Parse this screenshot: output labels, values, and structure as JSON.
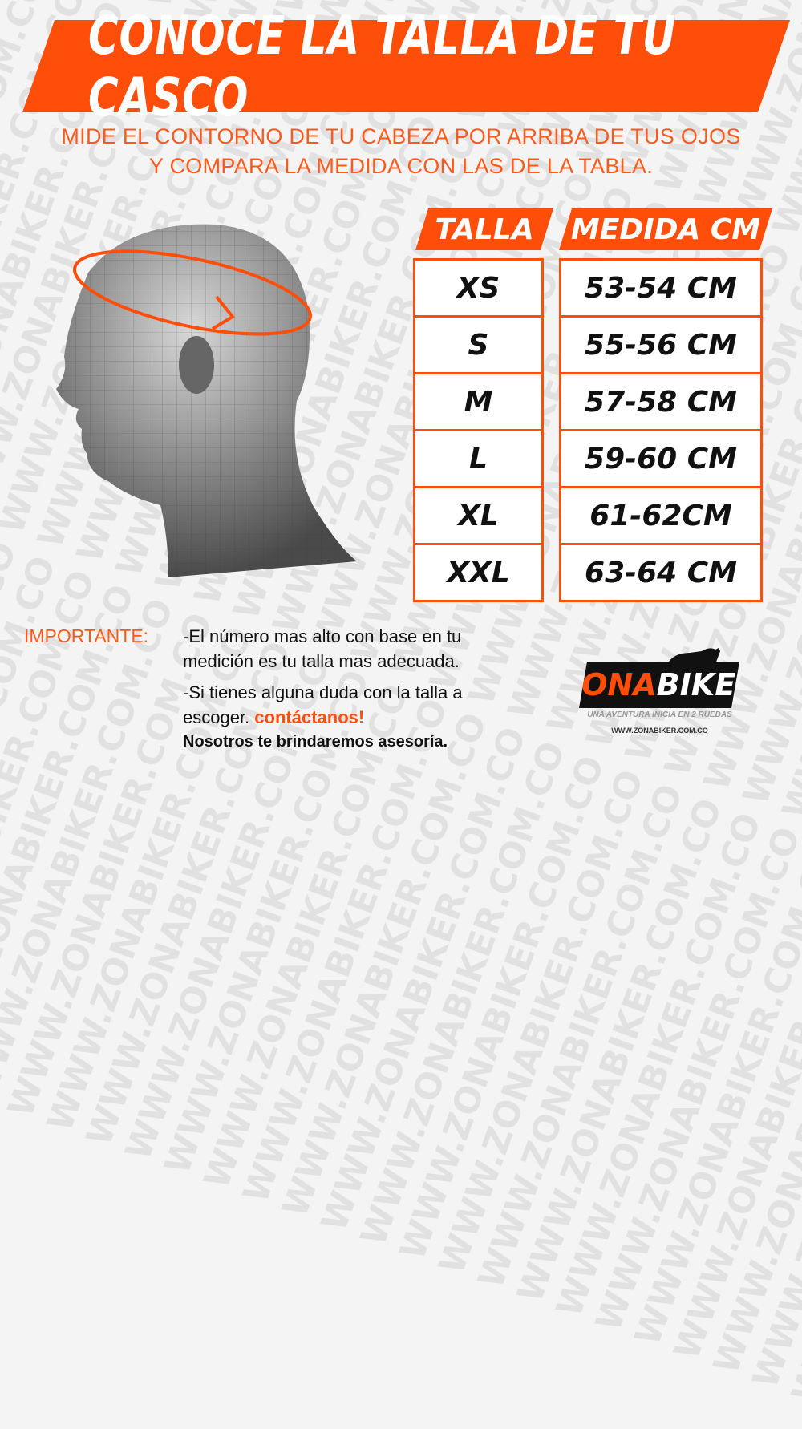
{
  "watermark": "WWW.ZONABIKER.COM.CO",
  "banner": {
    "title": "CONOCE LA TALLA DE TU CASCO"
  },
  "subtitle": {
    "line1": "MIDE EL CONTORNO DE TU CABEZA POR ARRIBA DE TUS OJOS",
    "line2": "Y COMPARA LA MEDIDA CON LAS DE LA TABLA."
  },
  "table": {
    "headers": [
      "TALLA",
      "MEDIDA CM"
    ],
    "rows": [
      {
        "talla": "XS",
        "medida": "53-54 CM"
      },
      {
        "talla": "S",
        "medida": "55-56 CM"
      },
      {
        "talla": "M",
        "medida": "57-58 CM"
      },
      {
        "talla": "L",
        "medida": "59-60 CM"
      },
      {
        "talla": "XL",
        "medida": "61-62CM"
      },
      {
        "talla": "XXL",
        "medida": "63-64 CM"
      }
    ]
  },
  "important": {
    "label": "IMPORTANTE:",
    "note1_line1": "-El número mas alto con base en tu",
    "note1_line2": "medición es tu talla mas adecuada.",
    "note2_line1": "-Si tienes alguna duda con la talla a",
    "note2_line2": "escoger.",
    "contact": "contáctanos!",
    "note2_line3": "Nosotros te brindaremos asesoría."
  },
  "logo": {
    "zona": "ZONA",
    "biker": "BIKER",
    "tagline": "UNA AVENTURA INICIA EN 2 RUEDAS",
    "url": "WWW.ZONABIKER.COM.CO"
  },
  "colors": {
    "accent": "#ff4e0a",
    "text": "#111111",
    "background": "#f4f4f4"
  }
}
